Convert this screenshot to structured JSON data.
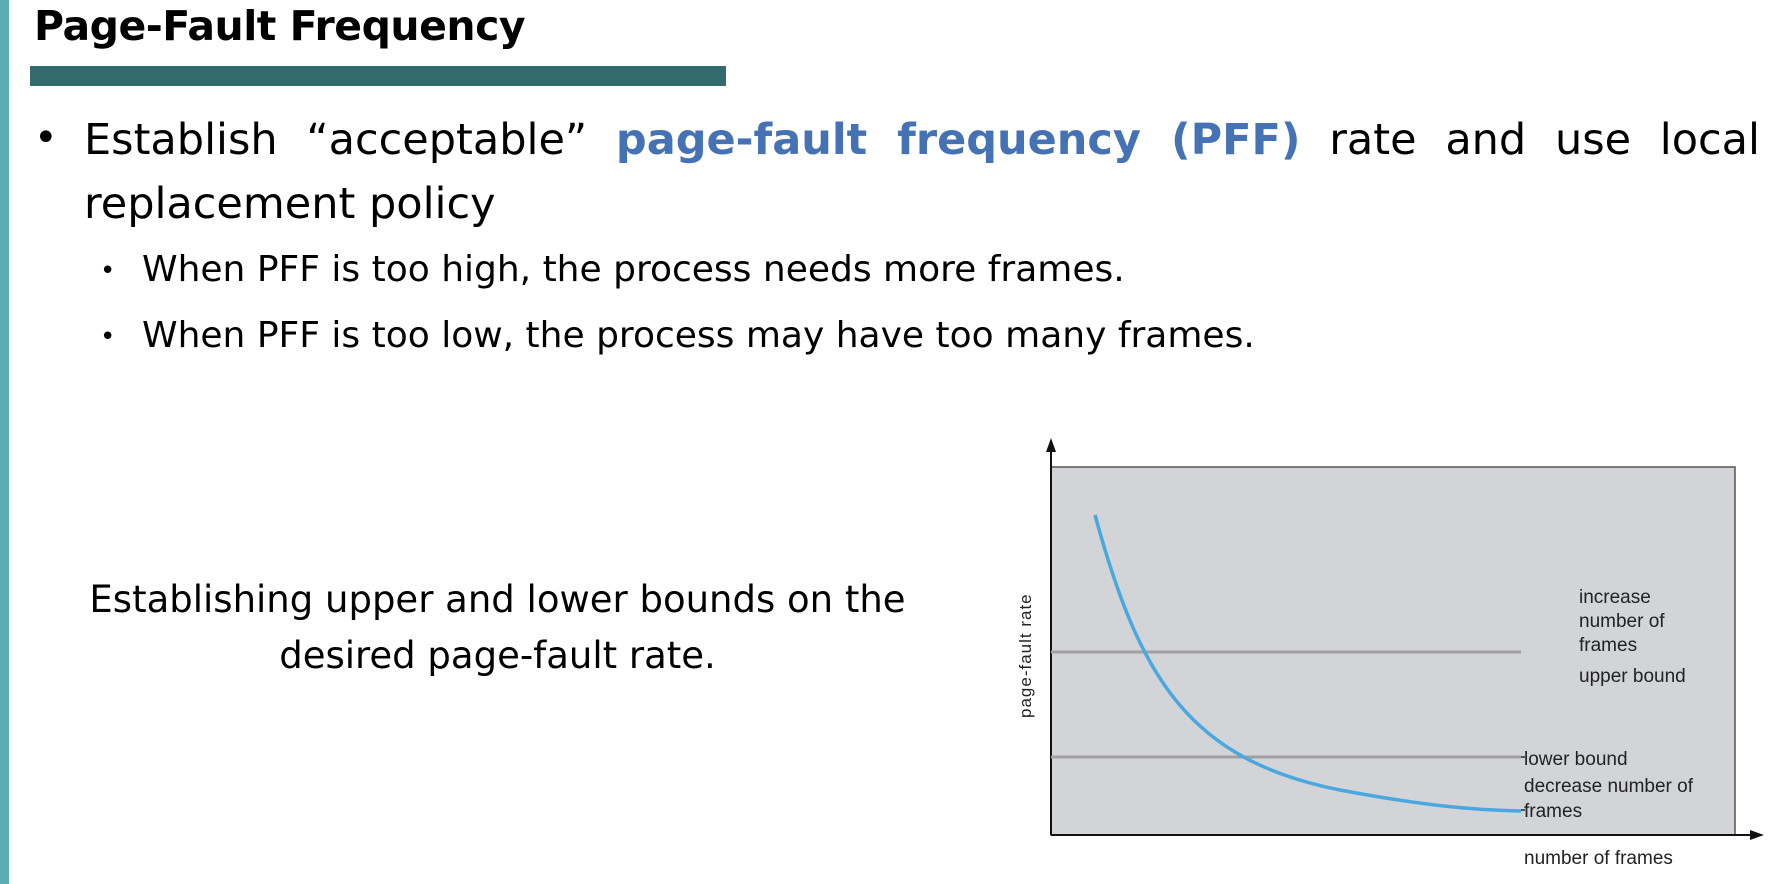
{
  "slide": {
    "title": "Page-Fault Frequency",
    "bullet_main": {
      "text_before": "Establish “acceptable” ",
      "highlight": "page-fault frequency (PFF)",
      "text_after": " rate and use local replacement policy"
    },
    "sub_bullets": [
      "When PFF is too high, the process needs more frames.",
      "When PFF is too low, the process may have too many frames."
    ],
    "caption": "Establishing upper and lower bounds on the desired page-fault rate.",
    "accent_color": "#5aaeb3",
    "bar_color": "#336b6c",
    "highlight_color": "#4472b4"
  },
  "diagram": {
    "y_axis_label": "page-fault rate",
    "x_axis_label": "number of frames",
    "upper_note": [
      "increase",
      "number  of",
      "frames"
    ],
    "upper_bound_label": "upper bound",
    "lower_bound_label": "lower bound",
    "lower_note": [
      "decrease number  of",
      "frames"
    ],
    "plot_background": "#d3d4d8",
    "curve_color": "#49a8e0",
    "bound_line_color": "#a0a0a0"
  }
}
